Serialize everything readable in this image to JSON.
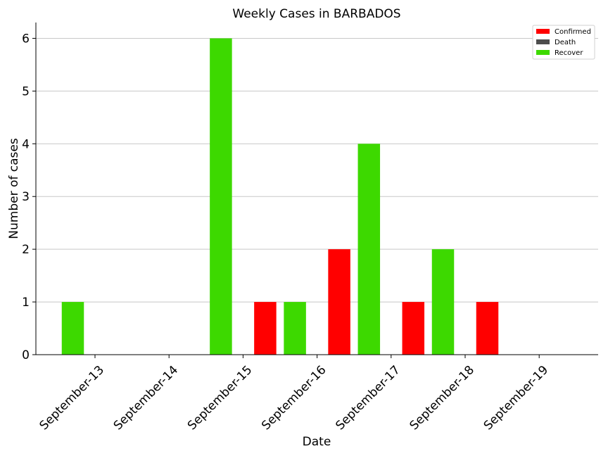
{
  "chart_data": {
    "type": "bar",
    "title": "Weekly Cases in BARBADOS",
    "xlabel": "Date",
    "ylabel": "Number of cases",
    "categories": [
      "September-13",
      "September-14",
      "September-15",
      "September-16",
      "September-17",
      "September-18",
      "September-19"
    ],
    "series": [
      {
        "name": "Confirmed",
        "color": "#ff0000",
        "values": [
          0,
          0,
          1,
          2,
          1,
          1,
          0
        ]
      },
      {
        "name": "Death",
        "color": "#4d4d4d",
        "values": [
          0,
          0,
          0,
          0,
          0,
          0,
          0
        ]
      },
      {
        "name": "Recover",
        "color": "#3dd900",
        "values": [
          1,
          0,
          6,
          1,
          4,
          2,
          0
        ]
      }
    ],
    "ylim": [
      0,
      6.3
    ],
    "yticks": [
      0,
      1,
      2,
      3,
      4,
      5,
      6
    ],
    "grid": "horizontal",
    "legend_position": "top-right"
  }
}
